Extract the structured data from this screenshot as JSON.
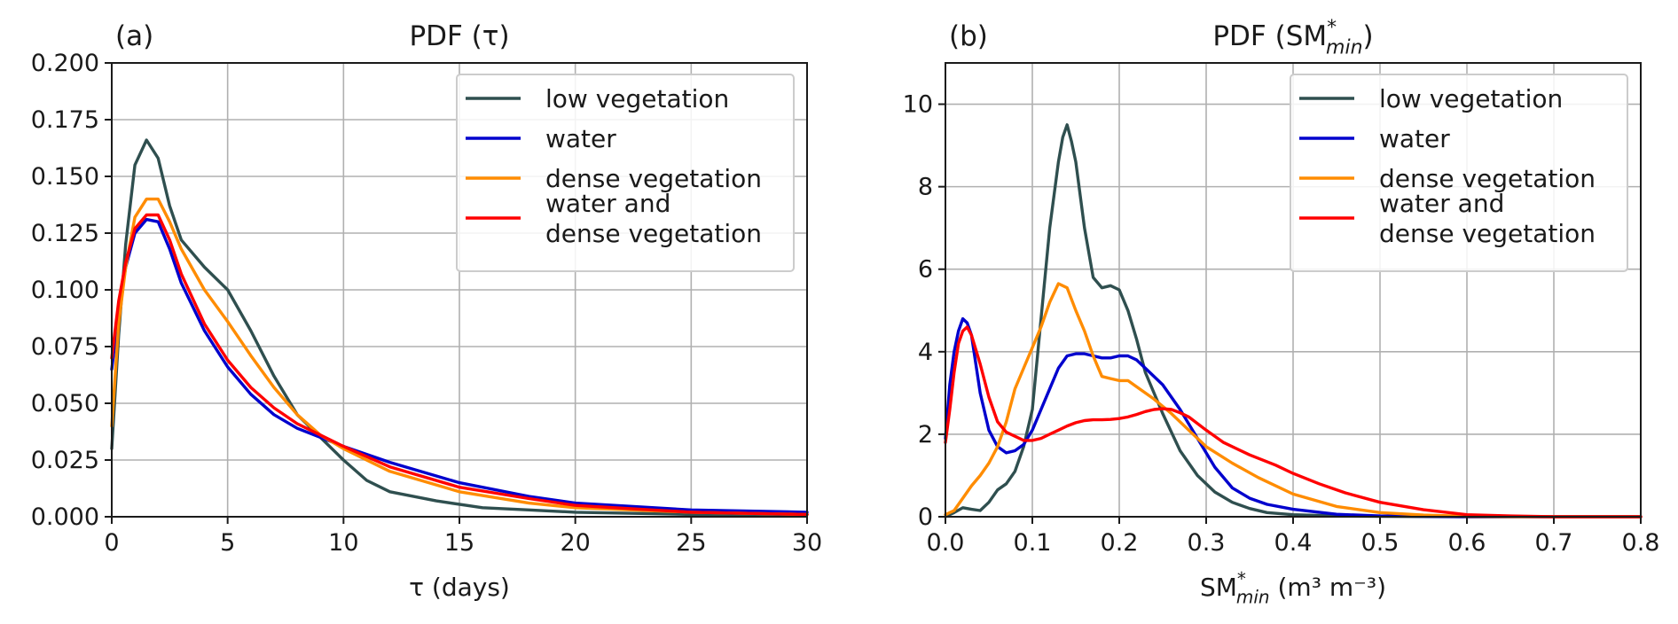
{
  "colors": {
    "low vegetation": "#2f4f4f",
    "water": "#0000cd",
    "dense vegetation": "#ff8c00",
    "water and dense vegetation": "#ff0000"
  },
  "chart_data": [
    {
      "type": "line",
      "panel_label": "(a)",
      "title": "PDF (τ)",
      "xlabel": "τ (days)",
      "ylabel": "",
      "xlim": [
        0,
        30
      ],
      "ylim": [
        0,
        0.2
      ],
      "xticks": [
        "0",
        "5",
        "10",
        "15",
        "20",
        "25",
        "30"
      ],
      "xtick_values": [
        0,
        5,
        10,
        15,
        20,
        25,
        30
      ],
      "yticks": [
        "0.000",
        "0.025",
        "0.050",
        "0.075",
        "0.100",
        "0.125",
        "0.150",
        "0.175",
        "0.200"
      ],
      "ytick_values": [
        0,
        0.025,
        0.05,
        0.075,
        0.1,
        0.125,
        0.15,
        0.175,
        0.2
      ],
      "grid": true,
      "legend_position": "top-right",
      "legend": [
        {
          "label": "low vegetation",
          "lines": [
            "low vegetation"
          ],
          "color_key": "low vegetation"
        },
        {
          "label": "water",
          "lines": [
            "water"
          ],
          "color_key": "water"
        },
        {
          "label": "dense vegetation",
          "lines": [
            "dense vegetation"
          ],
          "color_key": "dense vegetation"
        },
        {
          "label": "water and dense vegetation",
          "lines": [
            "water and",
            "dense vegetation"
          ],
          "color_key": "water and dense vegetation"
        }
      ],
      "series": [
        {
          "name": "low vegetation",
          "color_key": "low vegetation",
          "x": [
            0,
            0.3,
            0.6,
            1.0,
            1.5,
            2.0,
            2.5,
            3.0,
            4.0,
            5.0,
            6.0,
            7.0,
            8.0,
            9.0,
            10.0,
            11.0,
            12.0,
            14.0,
            16.0,
            18.0,
            20.0,
            25.0,
            30.0
          ],
          "y": [
            0.03,
            0.08,
            0.12,
            0.155,
            0.166,
            0.158,
            0.137,
            0.122,
            0.11,
            0.1,
            0.082,
            0.062,
            0.045,
            0.035,
            0.025,
            0.016,
            0.011,
            0.007,
            0.004,
            0.003,
            0.002,
            0.001,
            0.001
          ]
        },
        {
          "name": "water",
          "color_key": "water",
          "x": [
            0,
            0.3,
            0.6,
            1.0,
            1.5,
            2.0,
            2.5,
            3.0,
            4.0,
            5.0,
            6.0,
            7.0,
            8.0,
            9.0,
            10.0,
            12.0,
            15.0,
            18.0,
            20.0,
            25.0,
            30.0
          ],
          "y": [
            0.065,
            0.09,
            0.11,
            0.125,
            0.131,
            0.13,
            0.118,
            0.103,
            0.082,
            0.066,
            0.054,
            0.045,
            0.039,
            0.035,
            0.031,
            0.024,
            0.015,
            0.009,
            0.006,
            0.003,
            0.002
          ]
        },
        {
          "name": "dense vegetation",
          "color_key": "dense vegetation",
          "x": [
            0,
            0.3,
            0.6,
            1.0,
            1.5,
            2.0,
            2.5,
            3.0,
            4.0,
            5.0,
            6.0,
            7.0,
            8.0,
            9.0,
            10.0,
            12.0,
            15.0,
            18.0,
            20.0,
            25.0,
            30.0
          ],
          "y": [
            0.04,
            0.085,
            0.11,
            0.132,
            0.14,
            0.14,
            0.13,
            0.118,
            0.1,
            0.086,
            0.071,
            0.057,
            0.045,
            0.036,
            0.03,
            0.02,
            0.011,
            0.006,
            0.004,
            0.002,
            0.001
          ]
        },
        {
          "name": "water and dense vegetation",
          "color_key": "water and dense vegetation",
          "x": [
            0,
            0.3,
            0.6,
            1.0,
            1.5,
            2.0,
            2.5,
            3.0,
            4.0,
            5.0,
            6.0,
            7.0,
            8.0,
            9.0,
            10.0,
            12.0,
            15.0,
            18.0,
            20.0,
            25.0,
            30.0
          ],
          "y": [
            0.07,
            0.095,
            0.112,
            0.127,
            0.133,
            0.133,
            0.122,
            0.107,
            0.085,
            0.069,
            0.057,
            0.048,
            0.041,
            0.036,
            0.031,
            0.022,
            0.013,
            0.008,
            0.005,
            0.002,
            0.001
          ]
        }
      ]
    },
    {
      "type": "line",
      "panel_label": "(b)",
      "title": "PDF (SM*min)",
      "xlabel": "SM*min (m³ m⁻³)",
      "ylabel": "",
      "xlim": [
        0,
        0.8
      ],
      "ylim": [
        0,
        11
      ],
      "xticks": [
        "0.0",
        "0.1",
        "0.2",
        "0.3",
        "0.4",
        "0.5",
        "0.6",
        "0.7",
        "0.8"
      ],
      "xtick_values": [
        0,
        0.1,
        0.2,
        0.3,
        0.4,
        0.5,
        0.6,
        0.7,
        0.8
      ],
      "yticks": [
        "0",
        "2",
        "4",
        "6",
        "8",
        "10"
      ],
      "ytick_values": [
        0,
        2,
        4,
        6,
        8,
        10
      ],
      "grid": true,
      "legend_position": "top-right",
      "legend": [
        {
          "label": "low vegetation",
          "lines": [
            "low vegetation"
          ],
          "color_key": "low vegetation"
        },
        {
          "label": "water",
          "lines": [
            "water"
          ],
          "color_key": "water"
        },
        {
          "label": "dense vegetation",
          "lines": [
            "dense vegetation"
          ],
          "color_key": "dense vegetation"
        },
        {
          "label": "water and dense vegetation",
          "lines": [
            "water and",
            "dense vegetation"
          ],
          "color_key": "water and dense vegetation"
        }
      ],
      "series": [
        {
          "name": "low vegetation",
          "color_key": "low vegetation",
          "x": [
            0,
            0.01,
            0.02,
            0.03,
            0.04,
            0.05,
            0.06,
            0.07,
            0.08,
            0.09,
            0.1,
            0.11,
            0.12,
            0.13,
            0.135,
            0.14,
            0.145,
            0.15,
            0.16,
            0.17,
            0.18,
            0.19,
            0.2,
            0.21,
            0.22,
            0.23,
            0.25,
            0.27,
            0.29,
            0.31,
            0.33,
            0.35,
            0.37,
            0.4,
            0.45,
            0.5,
            0.6,
            0.7,
            0.8
          ],
          "y": [
            0,
            0.1,
            0.22,
            0.18,
            0.15,
            0.35,
            0.65,
            0.8,
            1.1,
            1.7,
            2.6,
            4.8,
            7.0,
            8.6,
            9.2,
            9.5,
            9.1,
            8.6,
            7.0,
            5.8,
            5.55,
            5.6,
            5.5,
            5.0,
            4.3,
            3.5,
            2.5,
            1.6,
            1.0,
            0.6,
            0.35,
            0.2,
            0.1,
            0.05,
            0.02,
            0.01,
            0,
            0,
            0
          ]
        },
        {
          "name": "water",
          "color_key": "water",
          "x": [
            0,
            0.005,
            0.01,
            0.015,
            0.02,
            0.025,
            0.03,
            0.035,
            0.04,
            0.05,
            0.06,
            0.07,
            0.08,
            0.09,
            0.1,
            0.11,
            0.12,
            0.13,
            0.14,
            0.15,
            0.16,
            0.17,
            0.18,
            0.19,
            0.2,
            0.21,
            0.22,
            0.23,
            0.25,
            0.27,
            0.29,
            0.31,
            0.33,
            0.35,
            0.37,
            0.4,
            0.45,
            0.5,
            0.6,
            0.7,
            0.8
          ],
          "y": [
            1.9,
            3.2,
            4.0,
            4.5,
            4.8,
            4.7,
            4.4,
            3.7,
            3.0,
            2.1,
            1.7,
            1.55,
            1.6,
            1.75,
            2.1,
            2.6,
            3.1,
            3.6,
            3.9,
            3.95,
            3.95,
            3.9,
            3.85,
            3.85,
            3.9,
            3.9,
            3.8,
            3.6,
            3.2,
            2.6,
            1.9,
            1.2,
            0.7,
            0.45,
            0.3,
            0.18,
            0.06,
            0.02,
            0,
            0,
            0
          ]
        },
        {
          "name": "dense vegetation",
          "color_key": "dense vegetation",
          "x": [
            0,
            0.01,
            0.02,
            0.03,
            0.04,
            0.05,
            0.06,
            0.07,
            0.08,
            0.09,
            0.1,
            0.11,
            0.12,
            0.13,
            0.14,
            0.15,
            0.16,
            0.17,
            0.18,
            0.19,
            0.2,
            0.21,
            0.22,
            0.24,
            0.26,
            0.28,
            0.3,
            0.33,
            0.36,
            0.4,
            0.45,
            0.5,
            0.55,
            0.6,
            0.7,
            0.8
          ],
          "y": [
            0.05,
            0.15,
            0.45,
            0.75,
            1.0,
            1.3,
            1.7,
            2.3,
            3.1,
            3.6,
            4.1,
            4.6,
            5.2,
            5.65,
            5.55,
            5.0,
            4.5,
            3.9,
            3.4,
            3.35,
            3.3,
            3.3,
            3.15,
            2.85,
            2.5,
            2.1,
            1.7,
            1.3,
            0.95,
            0.55,
            0.25,
            0.1,
            0.04,
            0.01,
            0,
            0
          ]
        },
        {
          "name": "water and dense vegetation",
          "color_key": "water and dense vegetation",
          "x": [
            0,
            0.005,
            0.01,
            0.015,
            0.02,
            0.025,
            0.03,
            0.04,
            0.05,
            0.06,
            0.07,
            0.08,
            0.09,
            0.1,
            0.11,
            0.12,
            0.13,
            0.14,
            0.15,
            0.16,
            0.17,
            0.18,
            0.19,
            0.2,
            0.21,
            0.22,
            0.23,
            0.24,
            0.25,
            0.26,
            0.27,
            0.28,
            0.3,
            0.32,
            0.35,
            0.38,
            0.4,
            0.43,
            0.46,
            0.5,
            0.55,
            0.6,
            0.65,
            0.7,
            0.8
          ],
          "y": [
            1.8,
            2.6,
            3.5,
            4.2,
            4.5,
            4.6,
            4.4,
            3.7,
            2.9,
            2.3,
            2.05,
            1.95,
            1.85,
            1.85,
            1.9,
            2.0,
            2.1,
            2.2,
            2.28,
            2.33,
            2.35,
            2.35,
            2.36,
            2.38,
            2.42,
            2.48,
            2.55,
            2.6,
            2.62,
            2.6,
            2.52,
            2.42,
            2.1,
            1.8,
            1.5,
            1.25,
            1.05,
            0.8,
            0.58,
            0.35,
            0.17,
            0.05,
            0.02,
            0,
            0
          ]
        }
      ]
    }
  ]
}
